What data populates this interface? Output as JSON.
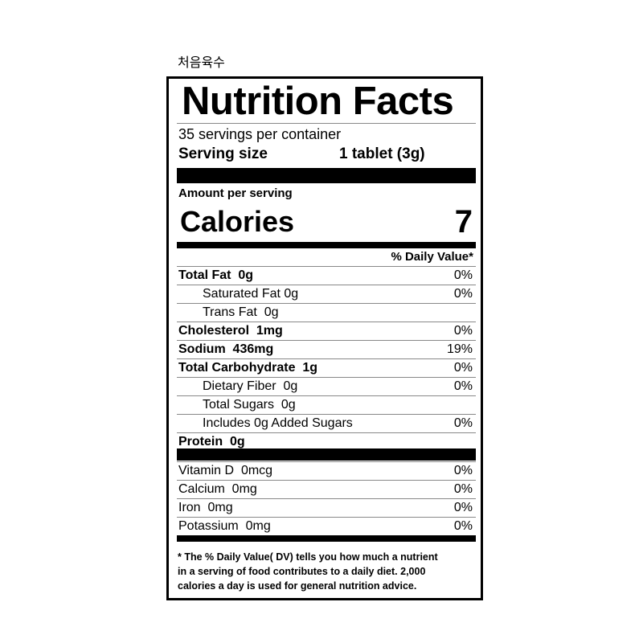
{
  "header": {
    "product": "처음육수"
  },
  "label": {
    "title": "Nutrition Facts",
    "servings": "35 servings per container",
    "serving_size_label": "Serving size",
    "serving_size_value": "1 tablet (3g)",
    "amount_per_serving": "Amount per serving",
    "calories_label": "Calories",
    "calories_value": "7",
    "daily_value_header": "% Daily Value*",
    "nutrients": [
      {
        "name": "Total Fat  0g",
        "dv": "0%",
        "bold": true,
        "indent": false
      },
      {
        "name": "Saturated Fat 0g",
        "dv": "0%",
        "bold": false,
        "indent": true
      },
      {
        "name": "Trans Fat  0g",
        "bold": false,
        "indent": true
      },
      {
        "name": "Cholesterol  1mg",
        "dv": "0%",
        "bold": true,
        "indent": false
      },
      {
        "name": "Sodium  436mg",
        "dv": "19%",
        "bold": true,
        "indent": false
      },
      {
        "name": "Total Carbohydrate  1g",
        "dv": "0%",
        "bold": true,
        "indent": false
      },
      {
        "name": "Dietary Fiber  0g",
        "dv": "0%",
        "bold": false,
        "indent": true
      },
      {
        "name": "Total Sugars  0g",
        "bold": false,
        "indent": true
      },
      {
        "name": "Includes 0g Added Sugars",
        "dv": "0%",
        "bold": false,
        "indent": true
      },
      {
        "name": "Protein  0g",
        "bold": true,
        "indent": false
      }
    ],
    "vitamins": [
      {
        "name": "Vitamin D  0mcg",
        "dv": "0%"
      },
      {
        "name": "Calcium  0mg",
        "dv": "0%"
      },
      {
        "name": "Iron  0mg",
        "dv": "0%"
      },
      {
        "name": "Potassium  0mg",
        "dv": "0%"
      }
    ],
    "footnote": [
      "* The % Daily Value( DV) tells you how much a nutrient",
      "in a serving of food contributes to a daily diet. 2,000",
      "calories a day is used for general nutrition advice."
    ]
  }
}
